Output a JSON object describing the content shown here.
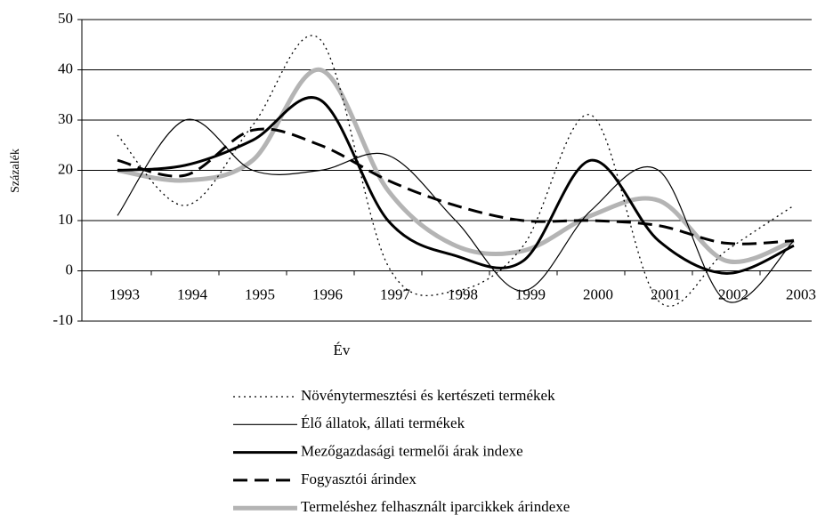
{
  "chart_data": {
    "type": "line",
    "xlabel": "Év",
    "ylabel": "Százalék",
    "categories": [
      "1993",
      "1994",
      "1995",
      "1996",
      "1997",
      "1998",
      "1999",
      "2000",
      "2001",
      "2002",
      "2003"
    ],
    "series": [
      {
        "name": "Növénytermesztési és kertészeti termékek",
        "color": "#000000",
        "style": "dotted",
        "values": [
          27,
          13,
          29,
          46,
          1,
          -4,
          5,
          31,
          -6,
          4,
          13
        ]
      },
      {
        "name": "Élő állatok, állati termékek",
        "color": "#000000",
        "style": "thin",
        "values": [
          11,
          30,
          20,
          20,
          23,
          10,
          -4,
          12,
          20,
          -6,
          6
        ]
      },
      {
        "name": "Mezőgazdasági termelői árak indexe",
        "color": "#000000",
        "style": "thick",
        "values": [
          20,
          21,
          26,
          34,
          10,
          3,
          2,
          22,
          6,
          -0.5,
          5
        ]
      },
      {
        "name": "Fogyasztói árindex",
        "color": "#000000",
        "style": "dashed",
        "values": [
          22,
          19,
          28,
          25,
          18,
          13,
          10,
          10,
          9,
          5.5,
          6
        ]
      },
      {
        "name": "Termeléshez felhasznált iparcikkek árindexe",
        "color": "#b4b4b4",
        "style": "gray",
        "values": [
          20,
          18,
          22,
          40,
          16,
          5,
          4,
          11,
          14,
          2,
          6
        ]
      }
    ],
    "ylim": [
      -10,
      50
    ],
    "yticks": [
      -10,
      0,
      10,
      20,
      30,
      40,
      50
    ],
    "grid": true
  }
}
